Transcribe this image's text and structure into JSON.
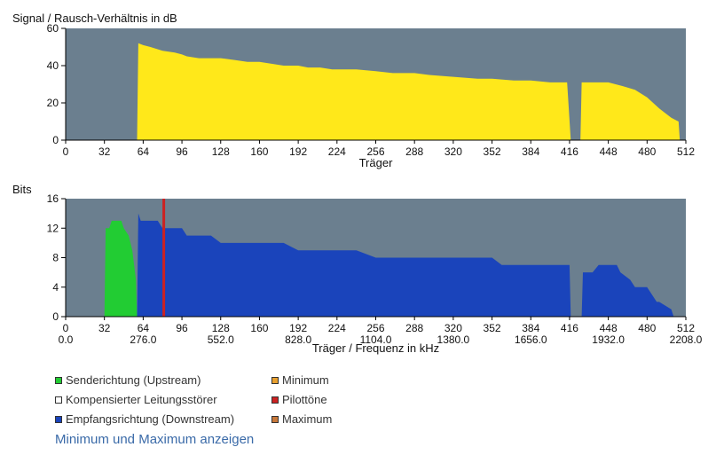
{
  "chart_data": [
    {
      "type": "area",
      "title": "Signal / Rausch-Verhältnis in dB",
      "xlabel": "Träger",
      "ylabel": "",
      "xlim": [
        0,
        512
      ],
      "ylim": [
        0,
        60
      ],
      "x_ticks": [
        0,
        32,
        64,
        96,
        128,
        160,
        192,
        224,
        256,
        288,
        320,
        352,
        384,
        416,
        448,
        480,
        512
      ],
      "y_ticks": [
        0,
        20,
        40,
        60
      ],
      "grid": false,
      "colors": {
        "plot_bg": "#6b7f8f",
        "fill": "#ffe81a"
      },
      "series": [
        {
          "segments": [
            {
              "x": [
                59,
                60,
                64,
                70,
                80,
                90,
                96,
                100,
                110,
                120,
                128,
                140,
                150,
                160,
                170,
                180,
                192,
                200,
                210,
                220,
                224,
                240,
                256,
                270,
                288,
                300,
                320,
                340,
                352,
                370,
                384,
                400,
                414,
                417
              ],
              "y": [
                0,
                52,
                51,
                50,
                48,
                47,
                46,
                45,
                44,
                44,
                44,
                43,
                42,
                42,
                41,
                40,
                40,
                39,
                39,
                38,
                38,
                38,
                37,
                36,
                36,
                35,
                34,
                33,
                33,
                32,
                32,
                31,
                31,
                0
              ]
            },
            {
              "x": [
                425,
                426,
                440,
                448,
                460,
                470,
                480,
                490,
                500,
                506,
                507
              ],
              "y": [
                0,
                31,
                31,
                31,
                29,
                27,
                23,
                17,
                12,
                10,
                0
              ]
            }
          ]
        }
      ]
    },
    {
      "type": "area",
      "title": "Bits",
      "xlabel": "Träger / Frequenz in kHz",
      "ylabel": "",
      "xlim": [
        0,
        512
      ],
      "ylim": [
        0,
        16
      ],
      "x_ticks": [
        0,
        32,
        64,
        96,
        128,
        160,
        192,
        224,
        256,
        288,
        320,
        352,
        384,
        416,
        448,
        480,
        512
      ],
      "y_ticks": [
        0,
        4,
        8,
        12,
        16
      ],
      "freq_ticks": [
        {
          "carrier": 0,
          "label": "0.0"
        },
        {
          "carrier": 64,
          "label": "276.0"
        },
        {
          "carrier": 128,
          "label": "552.0"
        },
        {
          "carrier": 192,
          "label": "828.0"
        },
        {
          "carrier": 256,
          "label": "1104.0"
        },
        {
          "carrier": 320,
          "label": "1380.0"
        },
        {
          "carrier": 384,
          "label": "1656.0"
        },
        {
          "carrier": 448,
          "label": "1932.0"
        },
        {
          "carrier": 512,
          "label": "2208.0"
        }
      ],
      "grid": false,
      "colors": {
        "plot_bg": "#6b7f8f"
      },
      "series": [
        {
          "name": "Senderichtung (Upstream)",
          "color": "#22cc33",
          "x": [
            32,
            33,
            36,
            38,
            46,
            48,
            52,
            55,
            58,
            59
          ],
          "y": [
            0,
            12,
            12,
            13,
            13,
            12,
            11,
            9,
            5,
            0
          ]
        },
        {
          "name": "Empfangsrichtung (Downstream)",
          "color": "#1a44bb",
          "x": [
            59,
            60,
            62,
            64,
            70,
            76,
            80,
            96,
            100,
            120,
            128,
            150,
            160,
            180,
            192,
            220,
            224,
            240,
            256,
            270,
            288,
            300,
            320,
            340,
            352,
            360,
            384,
            400,
            410,
            416,
            417
          ],
          "y": [
            0,
            14,
            13,
            13,
            13,
            13,
            12,
            12,
            11,
            11,
            10,
            10,
            10,
            10,
            9,
            9,
            9,
            9,
            8,
            8,
            8,
            8,
            8,
            8,
            8,
            7,
            7,
            7,
            7,
            7,
            0
          ]
        },
        {
          "name": "Empfangsrichtung (Downstream) 2",
          "color": "#1a44bb",
          "x": [
            426,
            427,
            435,
            440,
            448,
            455,
            458,
            466,
            470,
            480,
            488,
            490,
            500,
            502
          ],
          "y": [
            0,
            6,
            6,
            7,
            7,
            7,
            6,
            5,
            4,
            4,
            2,
            2,
            1,
            0
          ]
        }
      ],
      "pilot_tone": {
        "name": "Pilottöne",
        "carrier": 81,
        "color": "#cc2222"
      }
    }
  ],
  "legend": {
    "items": [
      {
        "label": "Senderichtung (Upstream)",
        "color": "#22cc33"
      },
      {
        "label": "Minimum",
        "color": "#e8a030"
      },
      {
        "label": "Kompensierter Leitungsstörer",
        "color": "#ffffff"
      },
      {
        "label": "Pilottöne",
        "color": "#cc2222"
      },
      {
        "label": "Empfangsrichtung (Downstream)",
        "color": "#1a44bb"
      },
      {
        "label": "Maximum",
        "color": "#c8783a"
      }
    ]
  },
  "toggle_link": "Minimum und Maximum anzeigen"
}
